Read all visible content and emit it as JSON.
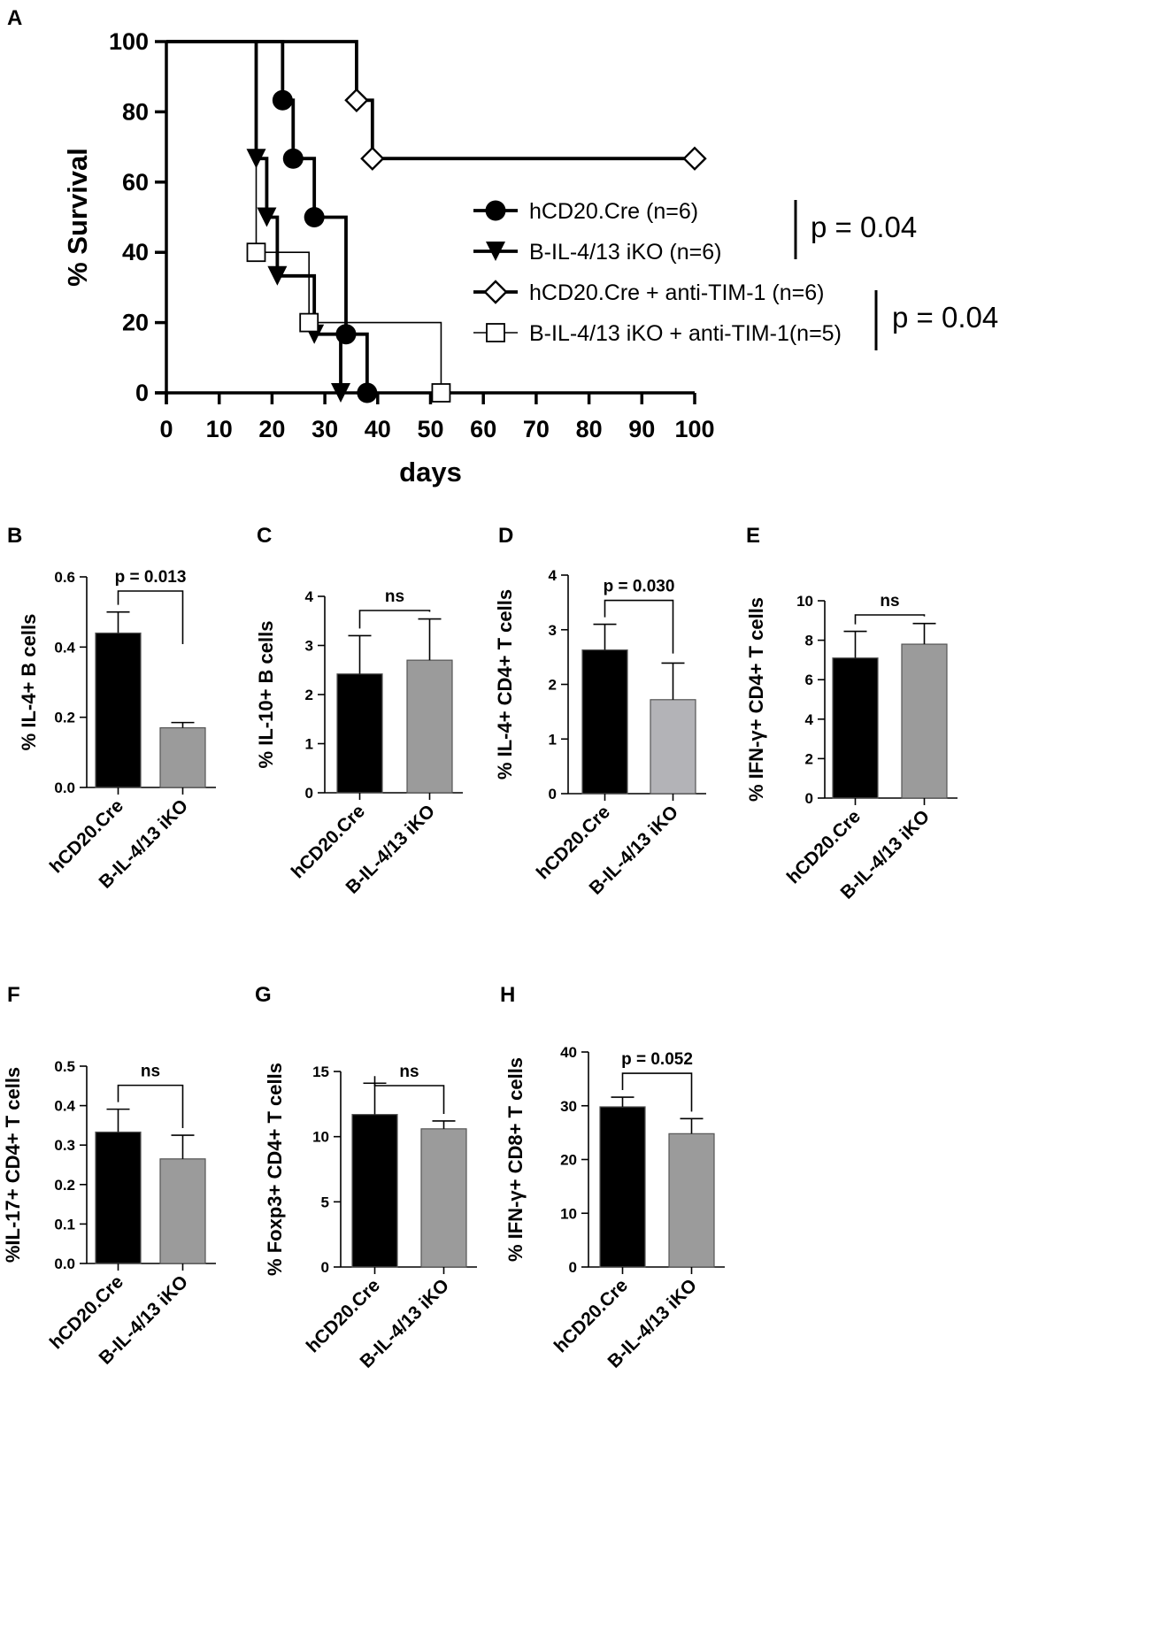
{
  "colors": {
    "ink": "#000000",
    "black_bar": "#000000",
    "gray_bar": "#9b9b9b",
    "light_gray_bar": "#b3b3b7",
    "background": "#ffffff"
  },
  "chart_data": [
    {
      "id": "A",
      "type": "line",
      "subtype": "kaplan-meier-survival",
      "panel": "A",
      "xlabel": "days",
      "ylabel": "% Survival",
      "xlim": [
        0,
        100
      ],
      "ylim": [
        0,
        100
      ],
      "xticks": [
        0,
        10,
        20,
        30,
        40,
        50,
        60,
        70,
        80,
        90,
        100
      ],
      "yticks": [
        0,
        20,
        40,
        60,
        80,
        100
      ],
      "grid": false,
      "legend_position": "right",
      "series": [
        {
          "name": "hCD20.Cre (n=6)",
          "marker": "filled-circle",
          "line": "thick",
          "steps": [
            [
              0,
              100
            ],
            [
              22,
              83.3
            ],
            [
              24,
              66.7
            ],
            [
              28,
              50
            ],
            [
              34,
              16.7
            ],
            [
              38,
              0
            ]
          ],
          "markers": [
            [
              22,
              83.3
            ],
            [
              24,
              66.7
            ],
            [
              28,
              50
            ],
            [
              34,
              16.7
            ],
            [
              38,
              0
            ]
          ]
        },
        {
          "name": "B-IL-4/13 iKO (n=6)",
          "marker": "filled-triangle-down",
          "line": "thick",
          "steps": [
            [
              0,
              100
            ],
            [
              17,
              66.7
            ],
            [
              19,
              50
            ],
            [
              21,
              33.3
            ],
            [
              28,
              16.7
            ],
            [
              33,
              0
            ]
          ],
          "markers": [
            [
              17,
              66.7
            ],
            [
              19,
              50
            ],
            [
              21,
              33.3
            ],
            [
              28,
              16.7
            ],
            [
              33,
              0
            ]
          ]
        },
        {
          "name": "hCD20.Cre + anti-TIM-1 (n=6)",
          "marker": "open-diamond",
          "line": "thick",
          "steps": [
            [
              0,
              100
            ],
            [
              36,
              83.3
            ],
            [
              39,
              66.7
            ],
            [
              100,
              66.7
            ]
          ],
          "markers": [
            [
              36,
              83.3
            ],
            [
              39,
              66.7
            ],
            [
              100,
              66.7
            ]
          ]
        },
        {
          "name": "B-IL-4/13 iKO + anti-TIM-1(n=5)",
          "marker": "open-square",
          "line": "thin",
          "steps": [
            [
              0,
              100
            ],
            [
              17,
              40
            ],
            [
              27,
              20
            ],
            [
              52,
              0
            ]
          ],
          "markers": [
            [
              17,
              40
            ],
            [
              27,
              20
            ],
            [
              52,
              0
            ]
          ]
        }
      ],
      "annotations": [
        {
          "text": "p = 0.04",
          "series": [
            0,
            1
          ]
        },
        {
          "text": "p = 0.04",
          "series": [
            2,
            3
          ]
        }
      ]
    },
    {
      "id": "B",
      "type": "bar",
      "panel": "B",
      "categories": [
        "hCD20.Cre",
        "B-IL-4/13 iKO"
      ],
      "values": [
        0.44,
        0.17
      ],
      "errors": [
        0.06,
        0.015
      ],
      "bar_colors": [
        "#000000",
        "#9b9b9b"
      ],
      "ylabel": "% IL-4+ B cells",
      "ylim": [
        0,
        0.6
      ],
      "yticks": [
        0,
        0.2,
        0.4,
        0.6
      ],
      "ytick_labels": [
        "0.0",
        "0.2",
        "0.4",
        "0.6"
      ],
      "annotation": "p = 0.013"
    },
    {
      "id": "C",
      "type": "bar",
      "panel": "C",
      "categories": [
        "hCD20.Cre",
        "B-IL-4/13 iKO"
      ],
      "values": [
        2.42,
        2.7
      ],
      "errors": [
        0.78,
        0.84
      ],
      "bar_colors": [
        "#000000",
        "#9b9b9b"
      ],
      "ylabel": "% IL-10+ B cells",
      "ylim": [
        0,
        4
      ],
      "yticks": [
        0,
        1,
        2,
        3,
        4
      ],
      "ytick_labels": [
        "0",
        "1",
        "2",
        "3",
        "4"
      ],
      "annotation": "ns"
    },
    {
      "id": "D",
      "type": "bar",
      "panel": "D",
      "categories": [
        "hCD20.Cre",
        "B-IL-4/13 iKO"
      ],
      "values": [
        2.63,
        1.72
      ],
      "errors": [
        0.47,
        0.67
      ],
      "bar_colors": [
        "#000000",
        "#b3b3b7"
      ],
      "ylabel": "% IL-4+ CD4+ T cells",
      "ylim": [
        0,
        4
      ],
      "yticks": [
        0,
        1,
        2,
        3,
        4
      ],
      "ytick_labels": [
        "0",
        "1",
        "2",
        "3",
        "4"
      ],
      "annotation": "p = 0.030"
    },
    {
      "id": "E",
      "type": "bar",
      "panel": "E",
      "categories": [
        "hCD20.Cre",
        "B-IL-4/13 iKO"
      ],
      "values": [
        7.1,
        7.8
      ],
      "errors": [
        1.35,
        1.05
      ],
      "bar_colors": [
        "#000000",
        "#9b9b9b"
      ],
      "ylabel": "% IFN-γ+ CD4+ T cells",
      "ylim": [
        0,
        10
      ],
      "yticks": [
        0,
        2,
        4,
        6,
        8,
        10
      ],
      "ytick_labels": [
        "0",
        "2",
        "4",
        "6",
        "8",
        "10"
      ],
      "annotation": "ns"
    },
    {
      "id": "F",
      "type": "bar",
      "panel": "F",
      "categories": [
        "hCD20.Cre",
        "B-IL-4/13 iKO"
      ],
      "values": [
        0.333,
        0.265
      ],
      "errors": [
        0.058,
        0.06
      ],
      "bar_colors": [
        "#000000",
        "#9b9b9b"
      ],
      "ylabel": "%IL-17+ CD4+ T cells",
      "ylim": [
        0,
        0.5
      ],
      "yticks": [
        0,
        0.1,
        0.2,
        0.3,
        0.4,
        0.5
      ],
      "ytick_labels": [
        "0.0",
        "0.1",
        "0.2",
        "0.3",
        "0.4",
        "0.5"
      ],
      "annotation": "ns"
    },
    {
      "id": "G",
      "type": "bar",
      "panel": "G",
      "categories": [
        "hCD20.Cre",
        "B-IL-4/13 iKO"
      ],
      "values": [
        11.7,
        10.6
      ],
      "errors": [
        2.4,
        0.6
      ],
      "bar_colors": [
        "#000000",
        "#9b9b9b"
      ],
      "ylabel": "% Foxp3+ CD4+ T cells",
      "ylim": [
        0,
        15
      ],
      "yticks": [
        0,
        5,
        10,
        15
      ],
      "ytick_labels": [
        "0",
        "5",
        "10",
        "15"
      ],
      "annotation": "ns"
    },
    {
      "id": "H",
      "type": "bar",
      "panel": "H",
      "categories": [
        "hCD20.Cre",
        "B-IL-4/13 iKO"
      ],
      "values": [
        29.8,
        24.8
      ],
      "errors": [
        1.8,
        2.8
      ],
      "bar_colors": [
        "#000000",
        "#9b9b9b"
      ],
      "ylabel": "% IFN-γ+ CD8+ T cells",
      "ylim": [
        0,
        40
      ],
      "yticks": [
        0,
        10,
        20,
        30,
        40
      ],
      "ytick_labels": [
        "0",
        "10",
        "20",
        "30",
        "40"
      ],
      "annotation": "p = 0.052"
    }
  ]
}
